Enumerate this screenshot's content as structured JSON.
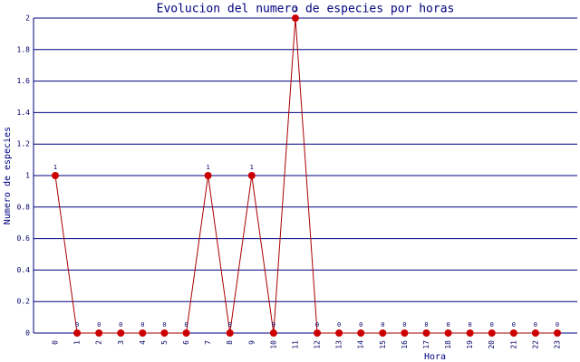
{
  "chart_data": {
    "type": "line",
    "title": "Evolucion del numero de especies por horas",
    "x_label": "Hora",
    "y_label": "Numero de especies",
    "categories": [
      "0",
      "1",
      "2",
      "3",
      "4",
      "5",
      "6",
      "7",
      "8",
      "9",
      "10",
      "11",
      "12",
      "13",
      "14",
      "15",
      "16",
      "17",
      "18",
      "19",
      "20",
      "21",
      "22",
      "23"
    ],
    "values": [
      1,
      0,
      0,
      0,
      0,
      0,
      0,
      1,
      0,
      1,
      0,
      2,
      0,
      0,
      0,
      0,
      0,
      0,
      0,
      0,
      0,
      0,
      0,
      0
    ],
    "color": "#aa0000",
    "marker_color": "#cc0000",
    "ylim": [
      0,
      2
    ],
    "yticks": [
      0,
      0.2,
      0.4,
      0.6,
      0.8,
      1,
      1.2,
      1.4,
      1.6,
      1.8,
      2
    ],
    "grid": true,
    "grid_color": "#000080"
  }
}
